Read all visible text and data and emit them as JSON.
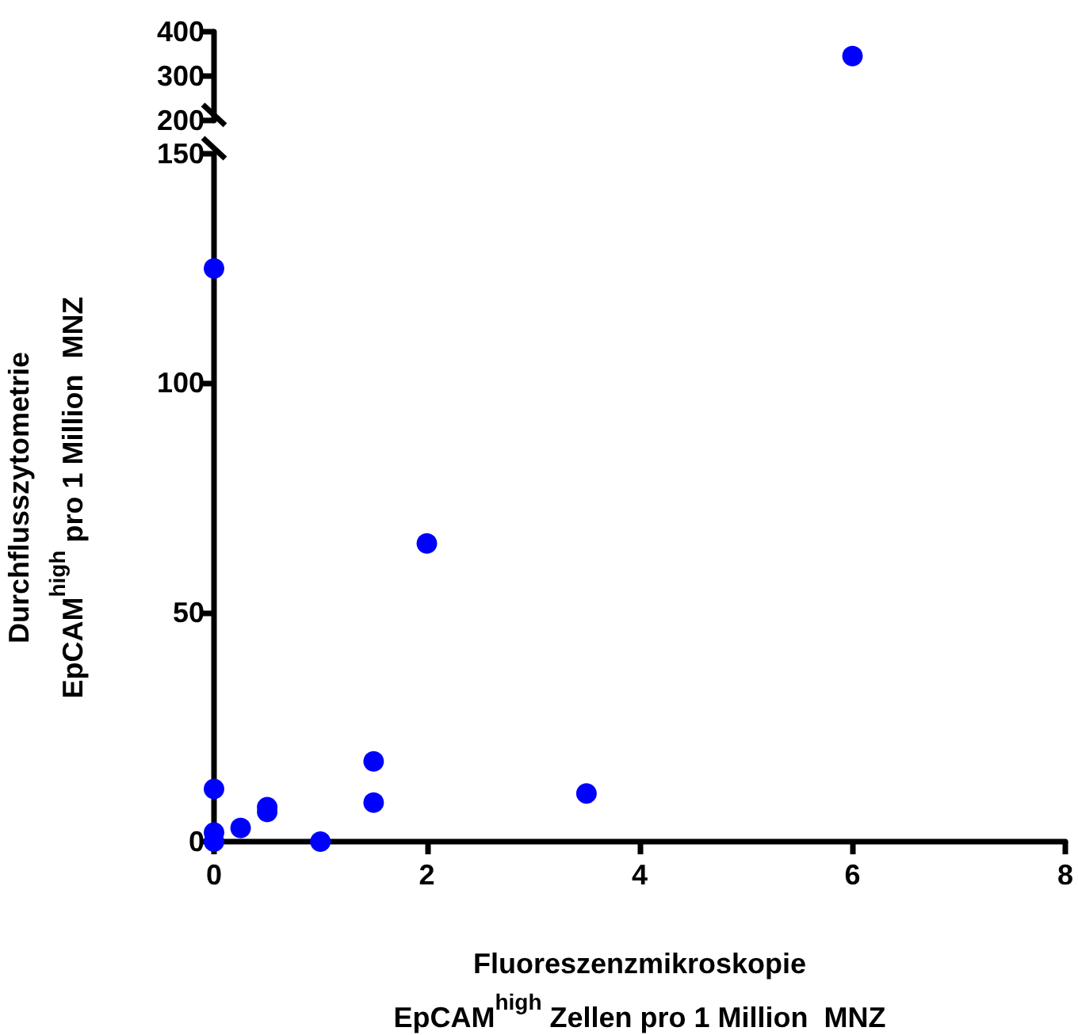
{
  "chart_data": [
    {
      "type": "scatter",
      "tick_labels": "y",
      "marker": "circle",
      "grid": false,
      "xlim": [
        0,
        8
      ],
      "ylim": [
        200,
        400
      ],
      "yticks": [
        200,
        300,
        400
      ],
      "series": [
        {
          "color": "#0000ff",
          "x": [
            6
          ],
          "values": [
            345
          ]
        }
      ]
    },
    {
      "type": "scatter",
      "marker": "circle",
      "grid": false,
      "xlabel": "Fluoreszenzmikroskopie\nEpCAM$^{high}$ Zellen pro 1 Million  MNZ",
      "ylabel": "Durchflusszytometrie\nEpCAM$^{high}$ pro 1 Million  MNZ",
      "xlim": [
        0,
        8
      ],
      "xticks": [
        0,
        2,
        4,
        6,
        8
      ],
      "ylim": [
        0,
        150
      ],
      "yticks": [
        0,
        50,
        100,
        150
      ],
      "series": [
        {
          "color": "#0000ff",
          "x": [
            0,
            2,
            0,
            0,
            0,
            0.25,
            0.5,
            0.5,
            1,
            1.5,
            1.5,
            3.5
          ],
          "values": [
            125,
            65,
            11.5,
            2,
            0,
            3,
            7.5,
            6.5,
            0,
            17.5,
            8.5,
            10.5
          ]
        }
      ]
    }
  ]
}
